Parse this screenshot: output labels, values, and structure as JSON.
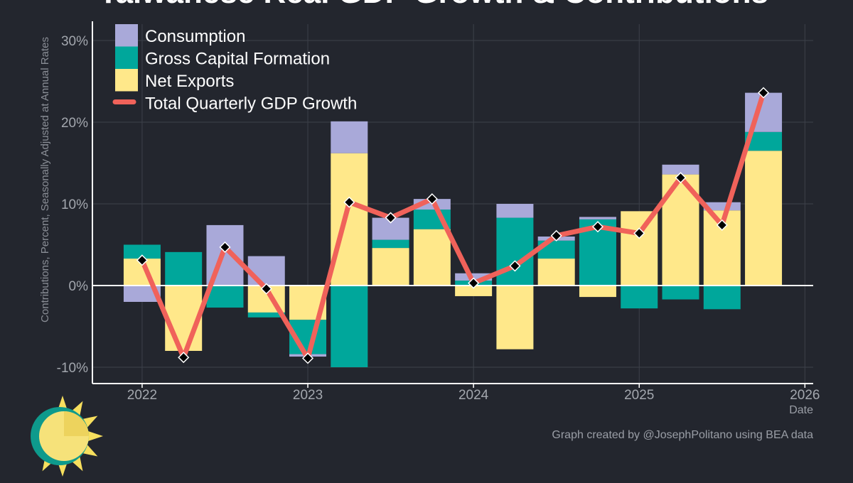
{
  "chart_data": {
    "type": "bar",
    "stacked": true,
    "title": "Taiwanese Real GDP Growth & Contributions",
    "ylabel": "Contributions, Percent, Seasonally Adjusted at Annual Rates",
    "xlabel": "Date",
    "ylim": [
      -12,
      32
    ],
    "xlim": [
      2021.7,
      2026.05
    ],
    "y_ticks": [
      -10,
      0,
      10,
      20,
      30
    ],
    "y_tick_labels": [
      "-10%",
      "0%",
      "10%",
      "20%",
      "30%"
    ],
    "x_ticks": [
      2022,
      2023,
      2024,
      2025,
      2026
    ],
    "x_tick_labels": [
      "2022",
      "2023",
      "2024",
      "2025",
      "2026"
    ],
    "grid": true,
    "legend_position": "top-left",
    "x": [
      2022.0,
      2022.25,
      2022.5,
      2022.75,
      2023.0,
      2023.25,
      2023.5,
      2023.75,
      2024.0,
      2024.25,
      2024.5,
      2024.75,
      2025.0,
      2025.25,
      2025.5,
      2025.75
    ],
    "series": [
      {
        "name": "Net Exports",
        "color": "#ffe88a",
        "values": [
          3.3,
          -8.0,
          0,
          -3.3,
          -4.2,
          16.2,
          4.6,
          6.9,
          -1.3,
          -7.8,
          3.3,
          -1.4,
          9.1,
          13.6,
          9.2,
          16.5
        ]
      },
      {
        "name": "Gross Capital Formation",
        "color": "#00a79b",
        "values": [
          1.7,
          4.1,
          -2.7,
          -0.6,
          -4.2,
          -10.0,
          1.0,
          2.4,
          0.6,
          8.3,
          2.2,
          8.1,
          -2.8,
          -1.7,
          -2.9,
          2.3
        ]
      },
      {
        "name": "Consumption",
        "color": "#a9a9d9",
        "values": [
          -2.0,
          0,
          7.4,
          3.6,
          -0.3,
          3.9,
          2.7,
          1.3,
          0.9,
          1.7,
          0.5,
          0.3,
          0,
          1.2,
          1.0,
          4.8
        ]
      }
    ],
    "line": {
      "name": "Total Quarterly GDP Growth",
      "color": "#f0625a",
      "values": [
        3.1,
        -8.8,
        4.7,
        -0.4,
        -8.9,
        10.2,
        8.3,
        10.6,
        0.3,
        2.4,
        6.1,
        7.2,
        6.4,
        13.2,
        7.4,
        23.6
      ]
    },
    "legend": [
      {
        "label": "Consumption",
        "color": "#a9a9d9",
        "kind": "box"
      },
      {
        "label": "Gross Capital Formation",
        "color": "#00a79b",
        "kind": "box"
      },
      {
        "label": "Net Exports",
        "color": "#ffe88a",
        "kind": "box"
      },
      {
        "label": "Total Quarterly GDP Growth",
        "color": "#f0625a",
        "kind": "line"
      }
    ],
    "credit": "Graph created by @JosephPolitano using BEA data"
  }
}
